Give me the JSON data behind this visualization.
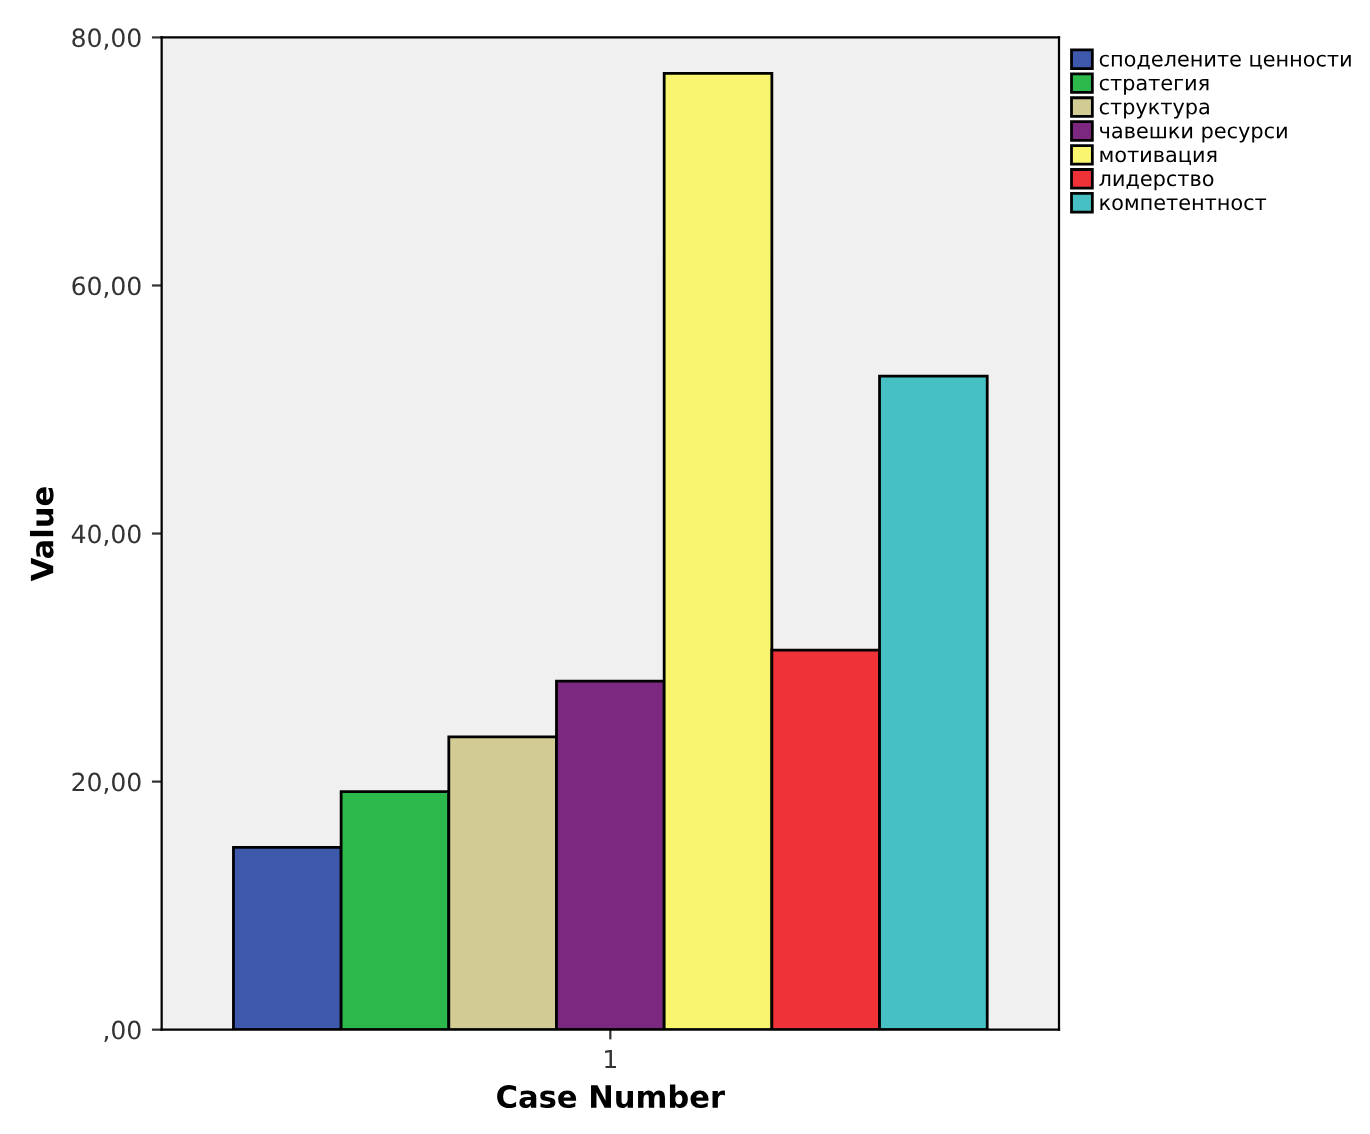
{
  "chart_data": {
    "type": "bar",
    "xlabel": "Case Number",
    "ylabel": "Value",
    "categories": [
      "1"
    ],
    "series": [
      {
        "name": "споделените ценности",
        "color": "#3e58ac",
        "values": [
          14.7
        ]
      },
      {
        "name": "стратегия",
        "color": "#2db84c",
        "values": [
          19.2
        ]
      },
      {
        "name": "структура",
        "color": "#d2cb94",
        "values": [
          23.6
        ]
      },
      {
        "name": "чавешки ресурси",
        "color": "#7c2880",
        "values": [
          28.1
        ]
      },
      {
        "name": "мотивация",
        "color": "#f9f56e",
        "values": [
          77.1
        ]
      },
      {
        "name": "лидерство",
        "color": "#ef3237",
        "values": [
          30.6
        ]
      },
      {
        "name": "компетентност",
        "color": "#46c0c2",
        "values": [
          52.7
        ]
      }
    ],
    "ylim": [
      0,
      80
    ],
    "yticks": [
      {
        "value": 0,
        "label": ",00"
      },
      {
        "value": 20,
        "label": "20,00"
      },
      {
        "value": 40,
        "label": "40,00"
      },
      {
        "value": 60,
        "label": "60,00"
      },
      {
        "value": 80,
        "label": "80,00"
      }
    ],
    "grid": false,
    "legend": "top right"
  }
}
